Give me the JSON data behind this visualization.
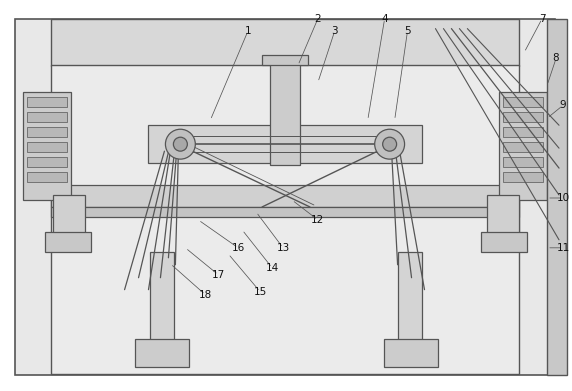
{
  "fig_bg": "#ffffff",
  "bg_color": "#e0e0e0",
  "line_color": "#555555",
  "line_color2": "#888888",
  "default_lw": 0.9,
  "labels": [
    [
      "1",
      248,
      30,
      210,
      120
    ],
    [
      "2",
      318,
      18,
      298,
      65
    ],
    [
      "3",
      335,
      30,
      318,
      82
    ],
    [
      "4",
      385,
      18,
      368,
      120
    ],
    [
      "5",
      408,
      30,
      395,
      120
    ],
    [
      "7",
      543,
      18,
      525,
      52
    ],
    [
      "8",
      557,
      58,
      548,
      85
    ],
    [
      "9",
      564,
      105,
      548,
      118
    ],
    [
      "10",
      564,
      198,
      548,
      198
    ],
    [
      "11",
      564,
      248,
      548,
      248
    ],
    [
      "12",
      318,
      220,
      292,
      200
    ],
    [
      "13",
      283,
      248,
      256,
      212
    ],
    [
      "14",
      272,
      268,
      242,
      230
    ],
    [
      "15",
      260,
      292,
      228,
      254
    ],
    [
      "16",
      238,
      248,
      198,
      220
    ],
    [
      "17",
      218,
      275,
      185,
      248
    ],
    [
      "18",
      205,
      295,
      170,
      264
    ]
  ]
}
